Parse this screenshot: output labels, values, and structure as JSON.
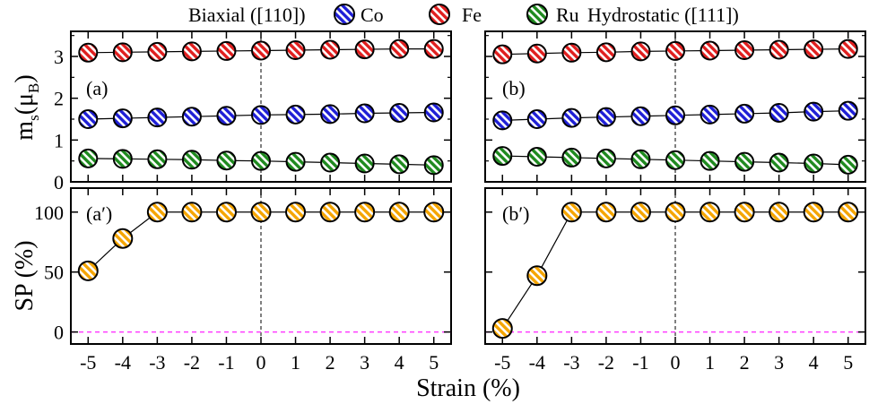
{
  "header": {
    "left_title": "Biaxial ([110])",
    "right_title": "Hydrostatic ([111])"
  },
  "legend": [
    {
      "label": "Co",
      "color": "#1f1fd6"
    },
    {
      "label": "Fe",
      "color": "#e01f1f"
    },
    {
      "label": "Ru",
      "color": "#1f8a1f"
    }
  ],
  "sp_color": "#f5a500",
  "guide_color": "#ff3cff",
  "ylabel_top": {
    "main": "m",
    "sub1": "s",
    "paren_open": "(μ",
    "sub2": "B",
    "paren_close": ")"
  },
  "ylabel_bottom": "SP (%)",
  "xlabel": "Strain (%)",
  "x_ticks": [
    "-5",
    "-4",
    "-3",
    "-2",
    "-1",
    "0",
    "1",
    "2",
    "3",
    "4",
    "5"
  ],
  "top_y_ticks": [
    "0",
    "1",
    "2",
    "3"
  ],
  "bottom_y_ticks": [
    "0",
    "50",
    "100"
  ],
  "panel_labels": {
    "a": "(a)",
    "b": "(b)",
    "a2": "(a′)",
    "b2": "(b′)"
  },
  "chart_data": [
    {
      "id": "a",
      "type": "line",
      "title": "Biaxial ([110])",
      "xlabel": "",
      "ylabel": "m_s (μ_B)",
      "x": [
        -5,
        -4,
        -3,
        -2,
        -1,
        0,
        1,
        2,
        3,
        4,
        5
      ],
      "xlim": [
        -5.5,
        5.5
      ],
      "ylim": [
        0,
        3.6
      ],
      "series": [
        {
          "name": "Fe",
          "values": [
            3.09,
            3.1,
            3.11,
            3.12,
            3.13,
            3.14,
            3.15,
            3.16,
            3.17,
            3.18,
            3.18
          ]
        },
        {
          "name": "Co",
          "values": [
            1.5,
            1.52,
            1.54,
            1.56,
            1.58,
            1.6,
            1.61,
            1.62,
            1.64,
            1.65,
            1.66
          ]
        },
        {
          "name": "Ru",
          "values": [
            0.56,
            0.55,
            0.54,
            0.53,
            0.51,
            0.5,
            0.48,
            0.46,
            0.44,
            0.42,
            0.4
          ]
        }
      ]
    },
    {
      "id": "b",
      "type": "line",
      "title": "Hydrostatic ([111])",
      "xlabel": "",
      "ylabel": "",
      "x": [
        -5,
        -4,
        -3,
        -2,
        -1,
        0,
        1,
        2,
        3,
        4,
        5
      ],
      "xlim": [
        -5.5,
        5.5
      ],
      "ylim": [
        0,
        3.6
      ],
      "series": [
        {
          "name": "Fe",
          "values": [
            3.05,
            3.07,
            3.09,
            3.1,
            3.12,
            3.13,
            3.14,
            3.15,
            3.16,
            3.17,
            3.18
          ]
        },
        {
          "name": "Co",
          "values": [
            1.47,
            1.5,
            1.53,
            1.55,
            1.57,
            1.59,
            1.61,
            1.63,
            1.65,
            1.68,
            1.7
          ]
        },
        {
          "name": "Ru",
          "values": [
            0.62,
            0.6,
            0.58,
            0.56,
            0.54,
            0.52,
            0.5,
            0.48,
            0.46,
            0.44,
            0.41
          ]
        }
      ]
    },
    {
      "id": "a2",
      "type": "line",
      "xlabel": "Strain (%)",
      "ylabel": "SP (%)",
      "x": [
        -5,
        -4,
        -3,
        -2,
        -1,
        0,
        1,
        2,
        3,
        4,
        5
      ],
      "xlim": [
        -5.5,
        5.5
      ],
      "ylim": [
        -10,
        120
      ],
      "series": [
        {
          "name": "SP",
          "values": [
            51,
            78,
            100,
            100,
            100,
            100,
            100,
            100,
            100,
            100,
            100
          ]
        }
      ]
    },
    {
      "id": "b2",
      "type": "line",
      "xlabel": "Strain (%)",
      "ylabel": "",
      "x": [
        -5,
        -4,
        -3,
        -2,
        -1,
        0,
        1,
        2,
        3,
        4,
        5
      ],
      "xlim": [
        -5.5,
        5.5
      ],
      "ylim": [
        -10,
        120
      ],
      "series": [
        {
          "name": "SP",
          "values": [
            3,
            47,
            100,
            100,
            100,
            100,
            100,
            100,
            100,
            100,
            100
          ]
        }
      ]
    }
  ]
}
